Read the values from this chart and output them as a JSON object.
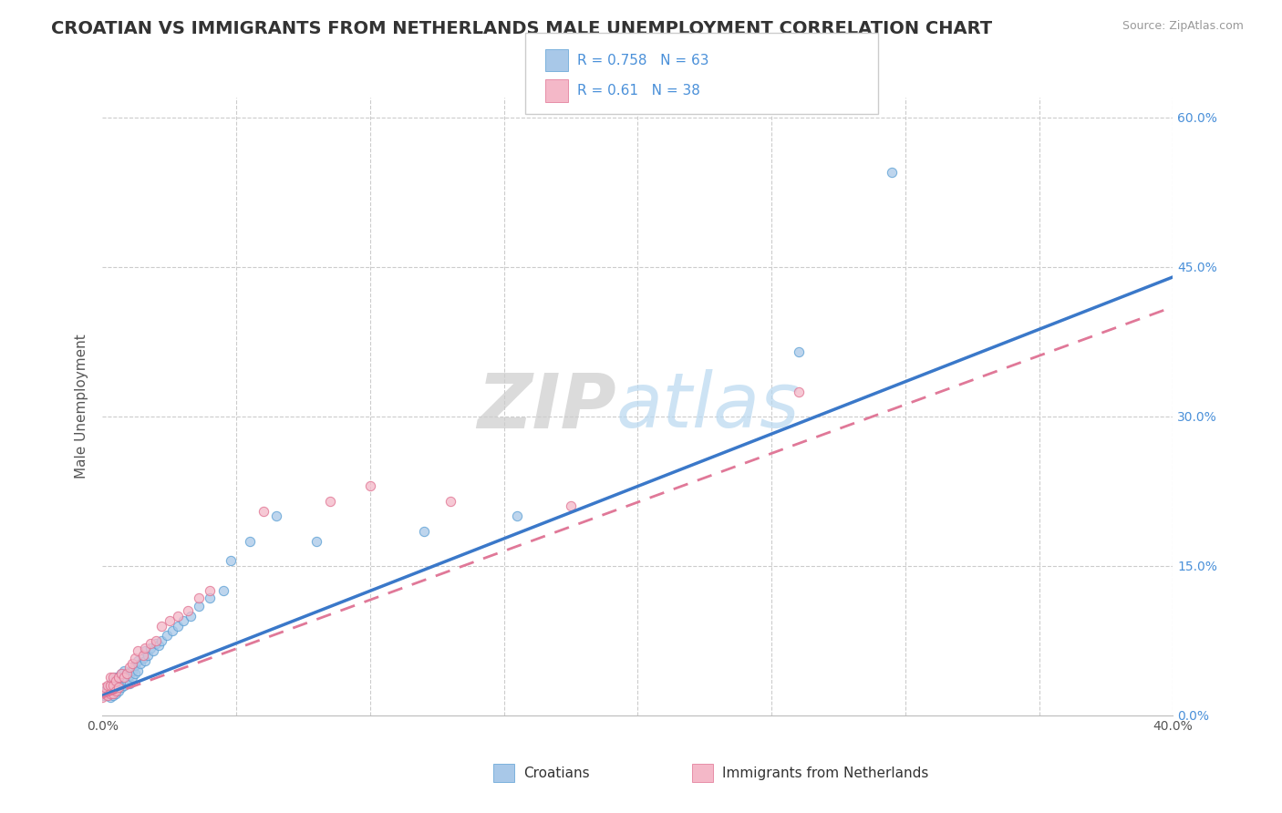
{
  "title": "CROATIAN VS IMMIGRANTS FROM NETHERLANDS MALE UNEMPLOYMENT CORRELATION CHART",
  "source": "Source: ZipAtlas.com",
  "ylabel": "Male Unemployment",
  "xlim": [
    0.0,
    0.4
  ],
  "ylim": [
    0.0,
    0.62
  ],
  "series1_color": "#a8c8e8",
  "series1_edge": "#5a9fd4",
  "series2_color": "#f4b8c8",
  "series2_edge": "#e07090",
  "line1_color": "#3a78c9",
  "line2_color": "#e07898",
  "R1": 0.758,
  "N1": 63,
  "R2": 0.61,
  "N2": 38,
  "legend_label1": "Croatians",
  "legend_label2": "Immigrants from Netherlands",
  "title_fontsize": 14,
  "label_fontsize": 11,
  "tick_fontsize": 10,
  "scatter1_x": [
    0.0,
    0.001,
    0.001,
    0.002,
    0.002,
    0.002,
    0.003,
    0.003,
    0.003,
    0.003,
    0.004,
    0.004,
    0.004,
    0.004,
    0.005,
    0.005,
    0.005,
    0.005,
    0.006,
    0.006,
    0.006,
    0.007,
    0.007,
    0.007,
    0.008,
    0.008,
    0.008,
    0.009,
    0.009,
    0.01,
    0.01,
    0.011,
    0.011,
    0.012,
    0.012,
    0.013,
    0.013,
    0.014,
    0.015,
    0.016,
    0.016,
    0.017,
    0.018,
    0.019,
    0.02,
    0.021,
    0.022,
    0.024,
    0.026,
    0.028,
    0.03,
    0.033,
    0.036,
    0.04,
    0.045,
    0.048,
    0.055,
    0.065,
    0.08,
    0.12,
    0.155,
    0.26,
    0.295
  ],
  "scatter1_y": [
    0.02,
    0.02,
    0.025,
    0.02,
    0.022,
    0.028,
    0.018,
    0.022,
    0.025,
    0.03,
    0.02,
    0.025,
    0.03,
    0.035,
    0.022,
    0.028,
    0.032,
    0.038,
    0.025,
    0.03,
    0.038,
    0.028,
    0.035,
    0.042,
    0.03,
    0.038,
    0.045,
    0.035,
    0.042,
    0.032,
    0.04,
    0.038,
    0.045,
    0.042,
    0.05,
    0.045,
    0.055,
    0.052,
    0.058,
    0.055,
    0.065,
    0.06,
    0.068,
    0.065,
    0.072,
    0.07,
    0.075,
    0.08,
    0.085,
    0.09,
    0.095,
    0.1,
    0.11,
    0.118,
    0.125,
    0.155,
    0.175,
    0.2,
    0.175,
    0.185,
    0.2,
    0.365,
    0.545
  ],
  "scatter2_x": [
    0.0,
    0.001,
    0.001,
    0.002,
    0.002,
    0.003,
    0.003,
    0.003,
    0.004,
    0.004,
    0.004,
    0.005,
    0.005,
    0.006,
    0.006,
    0.007,
    0.008,
    0.009,
    0.01,
    0.011,
    0.012,
    0.013,
    0.015,
    0.016,
    0.018,
    0.02,
    0.022,
    0.025,
    0.028,
    0.032,
    0.036,
    0.04,
    0.06,
    0.085,
    0.1,
    0.13,
    0.175,
    0.26
  ],
  "scatter2_y": [
    0.018,
    0.022,
    0.028,
    0.02,
    0.03,
    0.022,
    0.03,
    0.038,
    0.022,
    0.03,
    0.038,
    0.025,
    0.035,
    0.028,
    0.038,
    0.042,
    0.038,
    0.042,
    0.048,
    0.052,
    0.058,
    0.065,
    0.06,
    0.068,
    0.072,
    0.075,
    0.09,
    0.095,
    0.1,
    0.105,
    0.118,
    0.125,
    0.205,
    0.215,
    0.23,
    0.215,
    0.21,
    0.325
  ]
}
